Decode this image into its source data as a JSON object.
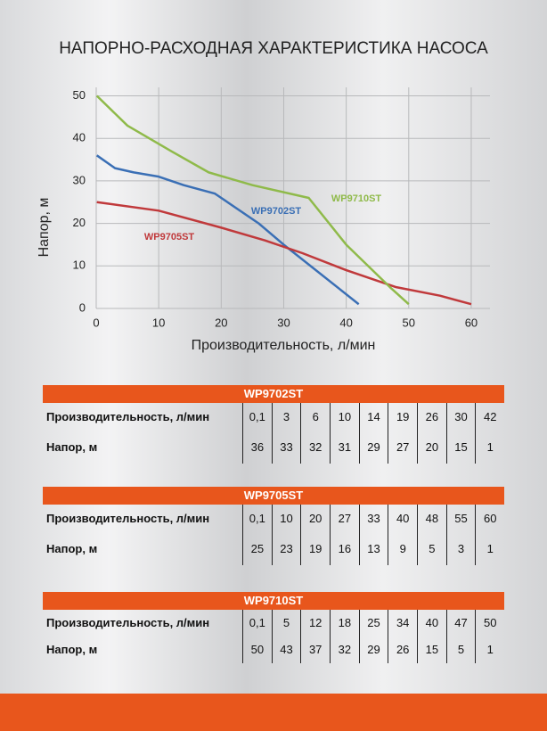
{
  "title": "НАПОРНО-РАСХОДНАЯ ХАРАКТЕРИСТИКА НАСОСА",
  "chart_data": {
    "type": "line",
    "x_label": "Производительность, л/мин",
    "y_label": "Напор, м",
    "xlim": [
      0,
      63
    ],
    "ylim": [
      0,
      52
    ],
    "xticks": [
      0,
      10,
      20,
      30,
      40,
      50,
      60
    ],
    "yticks": [
      0,
      10,
      20,
      30,
      40,
      50
    ],
    "grid": true,
    "series": [
      {
        "name": "WP9702ST",
        "color": "#3a6fb5",
        "x": [
          0.1,
          3,
          6,
          10,
          14,
          19,
          26,
          30,
          42
        ],
        "values": [
          36,
          33,
          32,
          31,
          29,
          27,
          20,
          15,
          1
        ]
      },
      {
        "name": "WP9705ST",
        "color": "#c0393b",
        "x": [
          0.1,
          10,
          20,
          27,
          33,
          40,
          48,
          55,
          60
        ],
        "values": [
          25,
          23,
          19,
          16,
          13,
          9,
          5,
          3,
          1
        ]
      },
      {
        "name": "WP9710ST",
        "color": "#8fba4a",
        "x": [
          0.1,
          5,
          12,
          18,
          25,
          34,
          40,
          47,
          50
        ],
        "values": [
          50,
          43,
          37,
          32,
          29,
          26,
          15,
          5,
          1
        ]
      }
    ]
  },
  "tables": [
    {
      "title": "WP9702ST",
      "rows": [
        {
          "label": "Производительность, л/мин",
          "cells": [
            "0,1",
            "3",
            "6",
            "10",
            "14",
            "19",
            "26",
            "30",
            "42"
          ]
        },
        {
          "label": "Напор, м",
          "cells": [
            "36",
            "33",
            "32",
            "31",
            "29",
            "27",
            "20",
            "15",
            "1"
          ]
        }
      ]
    },
    {
      "title": "WP9705ST",
      "rows": [
        {
          "label": "Производительность, л/мин",
          "cells": [
            "0,1",
            "10",
            "20",
            "27",
            "33",
            "40",
            "48",
            "55",
            "60"
          ]
        },
        {
          "label": "Напор, м",
          "cells": [
            "25",
            "23",
            "19",
            "16",
            "13",
            "9",
            "5",
            "3",
            "1"
          ]
        }
      ]
    },
    {
      "title": "WP9710ST",
      "rows": [
        {
          "label": "Производительность, л/мин",
          "cells": [
            "0,1",
            "5",
            "12",
            "18",
            "25",
            "34",
            "40",
            "47",
            "50"
          ]
        },
        {
          "label": "Напор, м",
          "cells": [
            "50",
            "43",
            "37",
            "32",
            "29",
            "26",
            "15",
            "5",
            "1"
          ]
        }
      ]
    }
  ]
}
